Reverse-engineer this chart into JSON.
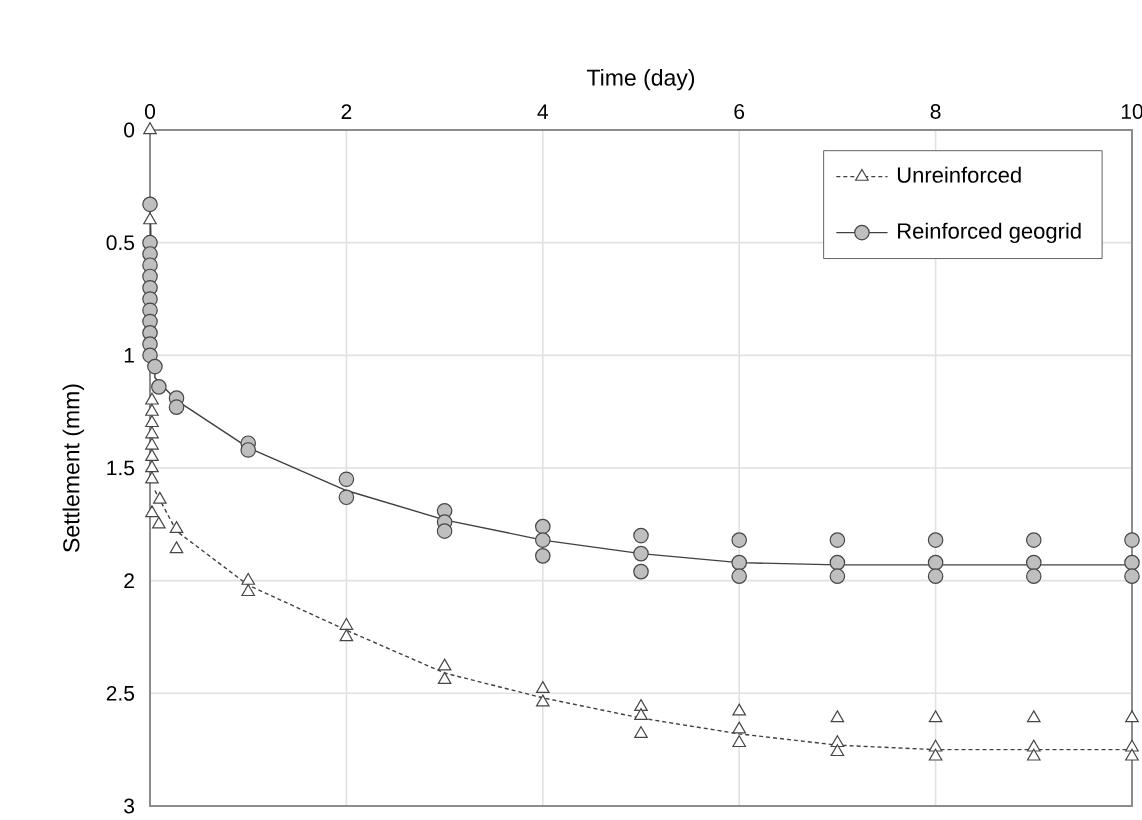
{
  "chart_data": {
    "type": "scatter",
    "xlabel": "Time (day)",
    "ylabel": "Settlement (mm)",
    "xlim": [
      0,
      10
    ],
    "xticks": [
      0,
      2,
      4,
      6,
      8,
      10
    ],
    "ylim": [
      3,
      0
    ],
    "yticks": [
      0,
      0.5,
      1,
      1.5,
      2,
      2.5,
      3
    ],
    "grid": true,
    "legend": "top right",
    "series": [
      {
        "name": "Unreinforced",
        "marker": "triangle",
        "color": "#ffffff",
        "x": [
          0,
          0,
          0.02,
          0.02,
          0.02,
          0.02,
          0.02,
          0.02,
          0.02,
          0.02,
          0.1,
          0.02,
          0.09,
          0.27,
          0.27,
          1,
          1,
          2,
          2,
          3,
          3,
          4,
          4,
          5,
          5,
          5,
          6,
          6,
          6,
          7,
          7,
          7,
          8,
          8,
          8,
          9,
          9,
          9,
          10,
          10,
          10
        ],
        "values": [
          0,
          0.4,
          1.2,
          1.25,
          1.3,
          1.35,
          1.4,
          1.45,
          1.5,
          1.55,
          1.64,
          1.7,
          1.75,
          1.77,
          1.86,
          2.0,
          2.05,
          2.2,
          2.25,
          2.38,
          2.44,
          2.48,
          2.54,
          2.56,
          2.6,
          2.68,
          2.58,
          2.66,
          2.72,
          2.61,
          2.72,
          2.76,
          2.61,
          2.74,
          2.78,
          2.61,
          2.74,
          2.78,
          2.61,
          2.74,
          2.78
        ]
      },
      {
        "type": "line",
        "marker": "none",
        "line_style": "dashed",
        "color": "#404040",
        "x": [
          0.05,
          0.27,
          1,
          2,
          3,
          4,
          5,
          6,
          7,
          8,
          9,
          10
        ],
        "values": [
          1.6,
          1.78,
          2.02,
          2.22,
          2.41,
          2.52,
          2.61,
          2.68,
          2.73,
          2.75,
          2.75,
          2.75
        ]
      },
      {
        "name": "Reinforced geogrid",
        "marker": "circle",
        "color": "#bfbfbf",
        "x": [
          0,
          0,
          0,
          0,
          0,
          0,
          0,
          0,
          0,
          0,
          0,
          0,
          0.05,
          0.09,
          0.27,
          0.27,
          1,
          1,
          2,
          2,
          3,
          3,
          3,
          4,
          4,
          4,
          5,
          5,
          5,
          6,
          6,
          6,
          7,
          7,
          7,
          8,
          8,
          8,
          9,
          9,
          9,
          10,
          10,
          10
        ],
        "values": [
          0.33,
          0.5,
          0.55,
          0.6,
          0.65,
          0.7,
          0.75,
          0.8,
          0.85,
          0.9,
          0.95,
          1.0,
          1.05,
          1.14,
          1.19,
          1.23,
          1.39,
          1.42,
          1.55,
          1.63,
          1.69,
          1.74,
          1.78,
          1.76,
          1.82,
          1.89,
          1.8,
          1.88,
          1.96,
          1.82,
          1.92,
          1.98,
          1.82,
          1.92,
          1.98,
          1.82,
          1.92,
          1.98,
          1.82,
          1.92,
          1.98,
          1.82,
          1.92,
          1.98
        ]
      },
      {
        "type": "line",
        "marker": "none",
        "line_style": "solid",
        "color": "#404040",
        "x": [
          0,
          0.05,
          0.27,
          1,
          2,
          3,
          4,
          5,
          6,
          7,
          8,
          9,
          10
        ],
        "values": [
          0.33,
          1.1,
          1.2,
          1.41,
          1.6,
          1.73,
          1.82,
          1.88,
          1.92,
          1.93,
          1.93,
          1.93,
          1.93
        ]
      }
    ]
  }
}
